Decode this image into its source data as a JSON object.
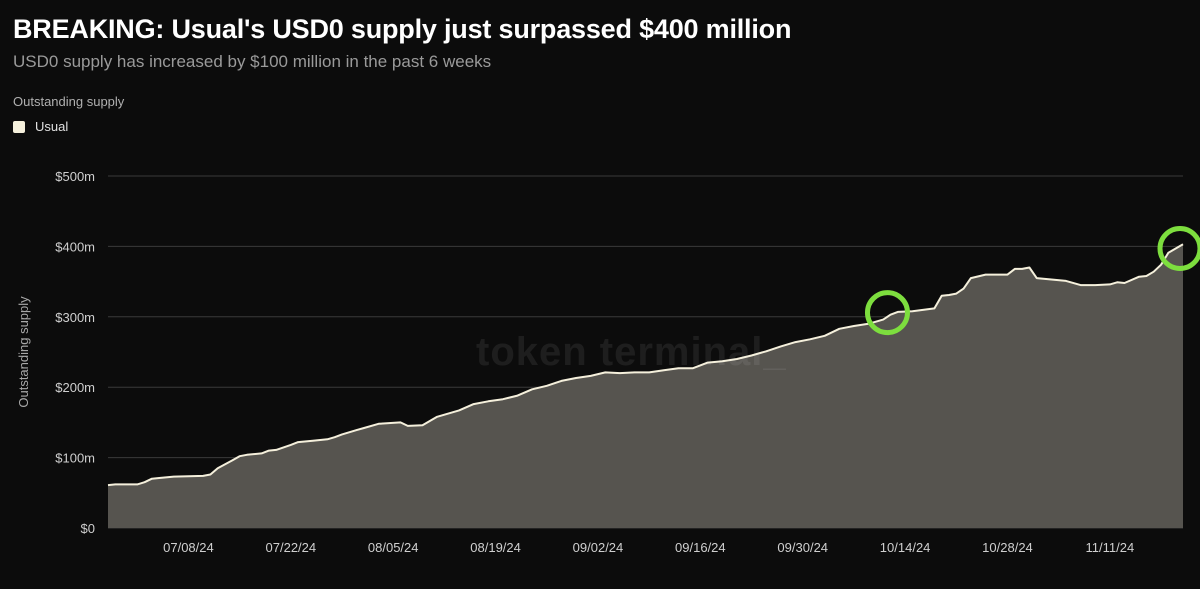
{
  "header": {
    "title": "BREAKING: Usual's USD0 supply just surpassed $400 million",
    "subtitle": "USD0 supply has increased by $100 million in the past 6 weeks"
  },
  "legend": {
    "title": "Outstanding supply",
    "items": [
      {
        "label": "Usual",
        "color": "#f5f0dc"
      }
    ]
  },
  "watermark": "token terminal_",
  "chart_data": {
    "type": "area",
    "ylabel": "Outstanding supply",
    "ylim": [
      0,
      500
    ],
    "y_ticks": [
      "$0",
      "$100m",
      "$200m",
      "$300m",
      "$400m",
      "$500m"
    ],
    "x_ticks": [
      "07/08/24",
      "07/22/24",
      "08/05/24",
      "08/19/24",
      "09/02/24",
      "09/16/24",
      "09/30/24",
      "10/14/24",
      "10/28/24",
      "11/11/24"
    ],
    "xlim": [
      "2024-06-27",
      "2024-11-21"
    ],
    "grid": true,
    "series": [
      {
        "name": "Usual",
        "color": "#f5f0dc",
        "fill": "#56544f",
        "points": [
          [
            "2024-06-27",
            61
          ],
          [
            "2024-06-28",
            62
          ],
          [
            "2024-07-01",
            62
          ],
          [
            "2024-07-02",
            65
          ],
          [
            "2024-07-03",
            70
          ],
          [
            "2024-07-04",
            71
          ],
          [
            "2024-07-06",
            73
          ],
          [
            "2024-07-10",
            74
          ],
          [
            "2024-07-11",
            76
          ],
          [
            "2024-07-12",
            85
          ],
          [
            "2024-07-14",
            96
          ],
          [
            "2024-07-15",
            102
          ],
          [
            "2024-07-16",
            104
          ],
          [
            "2024-07-18",
            106
          ],
          [
            "2024-07-19",
            110
          ],
          [
            "2024-07-20",
            111
          ],
          [
            "2024-07-22",
            118
          ],
          [
            "2024-07-23",
            122
          ],
          [
            "2024-07-25",
            124
          ],
          [
            "2024-07-27",
            126
          ],
          [
            "2024-07-28",
            129
          ],
          [
            "2024-07-29",
            133
          ],
          [
            "2024-07-31",
            139
          ],
          [
            "2024-08-01",
            142
          ],
          [
            "2024-08-03",
            148
          ],
          [
            "2024-08-06",
            150
          ],
          [
            "2024-08-07",
            145
          ],
          [
            "2024-08-09",
            146
          ],
          [
            "2024-08-11",
            158
          ],
          [
            "2024-08-14",
            167
          ],
          [
            "2024-08-16",
            176
          ],
          [
            "2024-08-18",
            180
          ],
          [
            "2024-08-20",
            183
          ],
          [
            "2024-08-22",
            188
          ],
          [
            "2024-08-24",
            197
          ],
          [
            "2024-08-26",
            202
          ],
          [
            "2024-08-28",
            209
          ],
          [
            "2024-08-30",
            213
          ],
          [
            "2024-09-01",
            216
          ],
          [
            "2024-09-03",
            221
          ],
          [
            "2024-09-05",
            220
          ],
          [
            "2024-09-07",
            221
          ],
          [
            "2024-09-09",
            221
          ],
          [
            "2024-09-11",
            224
          ],
          [
            "2024-09-13",
            227
          ],
          [
            "2024-09-15",
            227
          ],
          [
            "2024-09-17",
            235
          ],
          [
            "2024-09-19",
            237
          ],
          [
            "2024-09-21",
            240
          ],
          [
            "2024-09-23",
            245
          ],
          [
            "2024-09-25",
            251
          ],
          [
            "2024-09-27",
            258
          ],
          [
            "2024-09-29",
            264
          ],
          [
            "2024-10-01",
            268
          ],
          [
            "2024-10-03",
            273
          ],
          [
            "2024-10-05",
            283
          ],
          [
            "2024-10-07",
            287
          ],
          [
            "2024-10-09",
            290
          ],
          [
            "2024-10-11",
            296
          ],
          [
            "2024-10-12",
            303
          ],
          [
            "2024-10-13",
            307
          ],
          [
            "2024-10-15",
            308
          ],
          [
            "2024-10-18",
            312
          ],
          [
            "2024-10-19",
            330
          ],
          [
            "2024-10-20",
            331
          ],
          [
            "2024-10-21",
            333
          ],
          [
            "2024-10-22",
            340
          ],
          [
            "2024-10-23",
            355
          ],
          [
            "2024-10-25",
            360
          ],
          [
            "2024-10-28",
            360
          ],
          [
            "2024-10-29",
            368
          ],
          [
            "2024-10-30",
            368
          ],
          [
            "2024-10-31",
            370
          ],
          [
            "2024-11-01",
            355
          ],
          [
            "2024-11-03",
            353
          ],
          [
            "2024-11-05",
            351
          ],
          [
            "2024-11-07",
            345
          ],
          [
            "2024-11-09",
            345
          ],
          [
            "2024-11-11",
            346
          ],
          [
            "2024-11-12",
            349
          ],
          [
            "2024-11-13",
            348
          ],
          [
            "2024-11-15",
            357
          ],
          [
            "2024-11-16",
            358
          ],
          [
            "2024-11-17",
            364
          ],
          [
            "2024-11-18",
            374
          ],
          [
            "2024-11-19",
            391
          ],
          [
            "2024-11-21",
            403
          ]
        ]
      }
    ],
    "annotations": [
      {
        "type": "circle",
        "x": "2024-10-12",
        "y": 306,
        "color": "#7dde3e"
      },
      {
        "type": "circle",
        "x": "2024-11-21",
        "y": 397,
        "color": "#7dde3e"
      }
    ]
  }
}
